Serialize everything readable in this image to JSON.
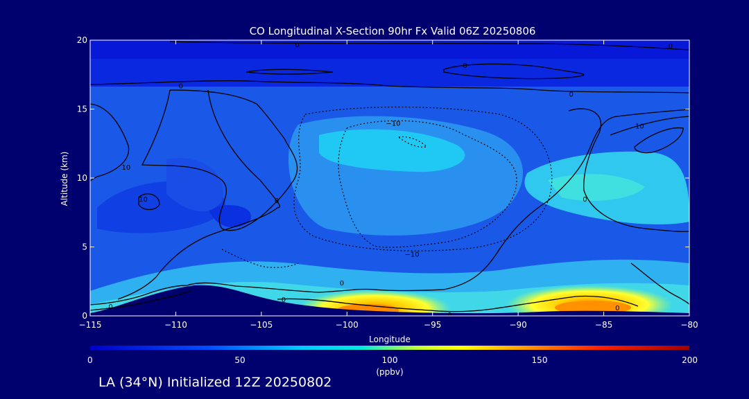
{
  "chart_data": {
    "type": "heatmap",
    "title": "CO Longitudinal X-Section 90hr  Fx Valid 06Z 20250806",
    "xlabel": "Longitude",
    "ylabel": "Altitude (km)",
    "xlim": [
      -115,
      -80
    ],
    "ylim": [
      0,
      20
    ],
    "xticks": [
      "−115",
      "−110",
      "−105",
      "−100",
      "−95",
      "−90",
      "−85",
      "−80"
    ],
    "yticks": [
      "0",
      "5",
      "10",
      "15",
      "20"
    ],
    "colorbar": {
      "label": "(ppbv)",
      "ticks": [
        "0",
        "50",
        "100",
        "150",
        "200"
      ],
      "range": [
        0,
        200
      ]
    },
    "contour_labels": [
      {
        "text": "0",
        "x": -102.9,
        "y": 19.7
      },
      {
        "text": "0",
        "x": -81.1,
        "y": 19.6
      },
      {
        "text": "0",
        "x": -93.1,
        "y": 18.2
      },
      {
        "text": "0",
        "x": -109.7,
        "y": 16.7
      },
      {
        "text": "0",
        "x": -86.9,
        "y": 16.1
      },
      {
        "text": "−10",
        "x": -97.3,
        "y": 14.0
      },
      {
        "text": "10",
        "x": -82.9,
        "y": 13.8
      },
      {
        "text": "10",
        "x": -112.9,
        "y": 10.8
      },
      {
        "text": "10",
        "x": -111.9,
        "y": 8.5
      },
      {
        "text": "0",
        "x": -104.1,
        "y": 8.4
      },
      {
        "text": "0",
        "x": -86.1,
        "y": 8.5
      },
      {
        "text": "−10",
        "x": -96.2,
        "y": 4.5
      },
      {
        "text": "0",
        "x": -100.3,
        "y": 2.4
      },
      {
        "text": "0",
        "x": -113.8,
        "y": 0.7
      },
      {
        "text": "0",
        "x": -103.7,
        "y": 1.2
      },
      {
        "text": "0",
        "x": -84.2,
        "y": 0.6
      },
      {
        "text": "0",
        "x": -94.0,
        "y": 0.1
      }
    ],
    "footer": "LA (34°N) Initialized 12Z 20250802"
  }
}
